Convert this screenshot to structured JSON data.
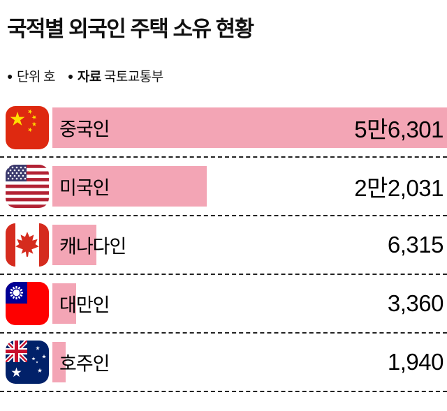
{
  "title": "국적별 외국인 주택 소유 현황",
  "meta": {
    "unit": {
      "bullet": "●",
      "label": "단위",
      "value": "호"
    },
    "source": {
      "bullet": "●",
      "label": "자료",
      "value": "국토교통부"
    }
  },
  "chart_data": {
    "type": "bar",
    "orientation": "horizontal",
    "title": "국적별 외국인 주택 소유 현황",
    "unit": "호",
    "source": "국토교통부",
    "categories": [
      "중국인",
      "미국인",
      "캐나다인",
      "대만인",
      "호주인"
    ],
    "values": [
      56301,
      22031,
      6315,
      3360,
      1940
    ],
    "value_labels": [
      "5만6,301",
      "2만2,031",
      "6,315",
      "3,360",
      "1,940"
    ],
    "flags": [
      "China",
      "USA",
      "Canada",
      "Taiwan",
      "Australia"
    ],
    "bar_color": "#f3a5b5",
    "xlim": [
      0,
      56301
    ],
    "grid": false,
    "legend": false
  },
  "rows": [
    {
      "country": "china",
      "label": "중국인",
      "value": "5만6,301",
      "width_pct": 100
    },
    {
      "country": "usa",
      "label": "미국인",
      "value": "2만2,031",
      "width_pct": 39.1
    },
    {
      "country": "canada",
      "label": "캐나다인",
      "value": "6,315",
      "width_pct": 11.2
    },
    {
      "country": "taiwan",
      "label": "대만인",
      "value": "3,360",
      "width_pct": 6.0
    },
    {
      "country": "australia",
      "label": "호주인",
      "value": "1,940",
      "width_pct": 3.4
    }
  ]
}
